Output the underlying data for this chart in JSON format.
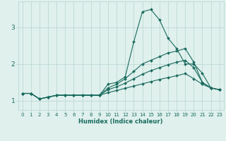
{
  "xlabel": "Humidex (Indice chaleur)",
  "background_color": "#dff0ed",
  "grid_color": "#b8d4d0",
  "line_color": "#1a6b5e",
  "x_values": [
    0,
    1,
    2,
    3,
    4,
    5,
    6,
    7,
    8,
    9,
    10,
    11,
    12,
    13,
    14,
    15,
    16,
    17,
    18,
    19,
    20,
    21,
    22,
    23
  ],
  "series": [
    [
      1.2,
      1.2,
      1.05,
      1.1,
      1.15,
      1.15,
      1.15,
      1.15,
      1.15,
      1.15,
      1.45,
      1.5,
      1.65,
      2.6,
      3.42,
      3.48,
      3.2,
      2.7,
      2.42,
      2.0,
      2.0,
      1.75,
      1.35,
      1.3
    ],
    [
      1.2,
      1.2,
      1.05,
      1.1,
      1.15,
      1.15,
      1.15,
      1.15,
      1.15,
      1.15,
      1.35,
      1.45,
      1.6,
      1.8,
      2.0,
      2.1,
      2.2,
      2.3,
      2.35,
      2.42,
      2.05,
      1.5,
      1.35,
      1.3
    ],
    [
      1.2,
      1.2,
      1.05,
      1.1,
      1.15,
      1.15,
      1.15,
      1.15,
      1.15,
      1.15,
      1.3,
      1.38,
      1.48,
      1.6,
      1.72,
      1.82,
      1.9,
      1.98,
      2.05,
      2.1,
      1.9,
      1.5,
      1.35,
      1.3
    ],
    [
      1.2,
      1.2,
      1.05,
      1.1,
      1.15,
      1.15,
      1.15,
      1.15,
      1.15,
      1.15,
      1.22,
      1.28,
      1.34,
      1.4,
      1.46,
      1.52,
      1.58,
      1.63,
      1.68,
      1.74,
      1.6,
      1.45,
      1.35,
      1.3
    ]
  ],
  "ylim": [
    0.75,
    3.7
  ],
  "yticks": [
    1,
    2,
    3
  ],
  "xlim": [
    -0.5,
    23.5
  ],
  "xlabel_fontsize": 6,
  "ytick_fontsize": 6.5,
  "xtick_fontsize": 5.0
}
